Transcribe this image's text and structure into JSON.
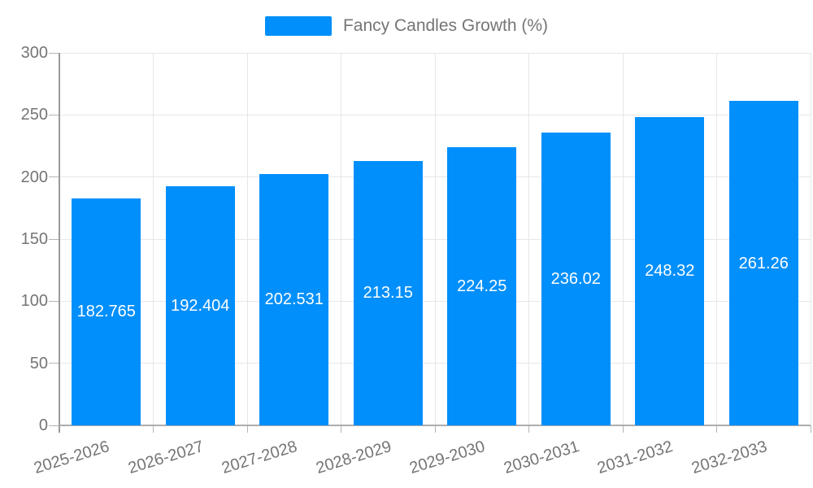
{
  "legend": {
    "label": "Fancy Candles Growth (%)",
    "swatch_color": "#008FFB"
  },
  "chart_data": {
    "type": "bar",
    "title": "",
    "xlabel": "",
    "ylabel": "",
    "categories": [
      "2025-2026",
      "2026-2027",
      "2027-2028",
      "2028-2029",
      "2029-2030",
      "2030-2031",
      "2031-2032",
      "2032-2033"
    ],
    "series": [
      {
        "name": "Fancy Candles Growth (%)",
        "values": [
          182.765,
          192.404,
          202.531,
          213.15,
          224.25,
          236.02,
          248.32,
          261.26
        ],
        "value_labels": [
          "182.765",
          "192.404",
          "202.531",
          "213.15",
          "224.25",
          "236.02",
          "248.32",
          "261.26"
        ]
      }
    ],
    "ylim": [
      0,
      300
    ],
    "yticks": [
      0,
      50,
      100,
      150,
      200,
      250,
      300
    ],
    "grid": true,
    "legend_position": "top",
    "bar_color": "#008FFB",
    "value_label_color": "#ffffff",
    "axis_text_color": "#757575"
  }
}
